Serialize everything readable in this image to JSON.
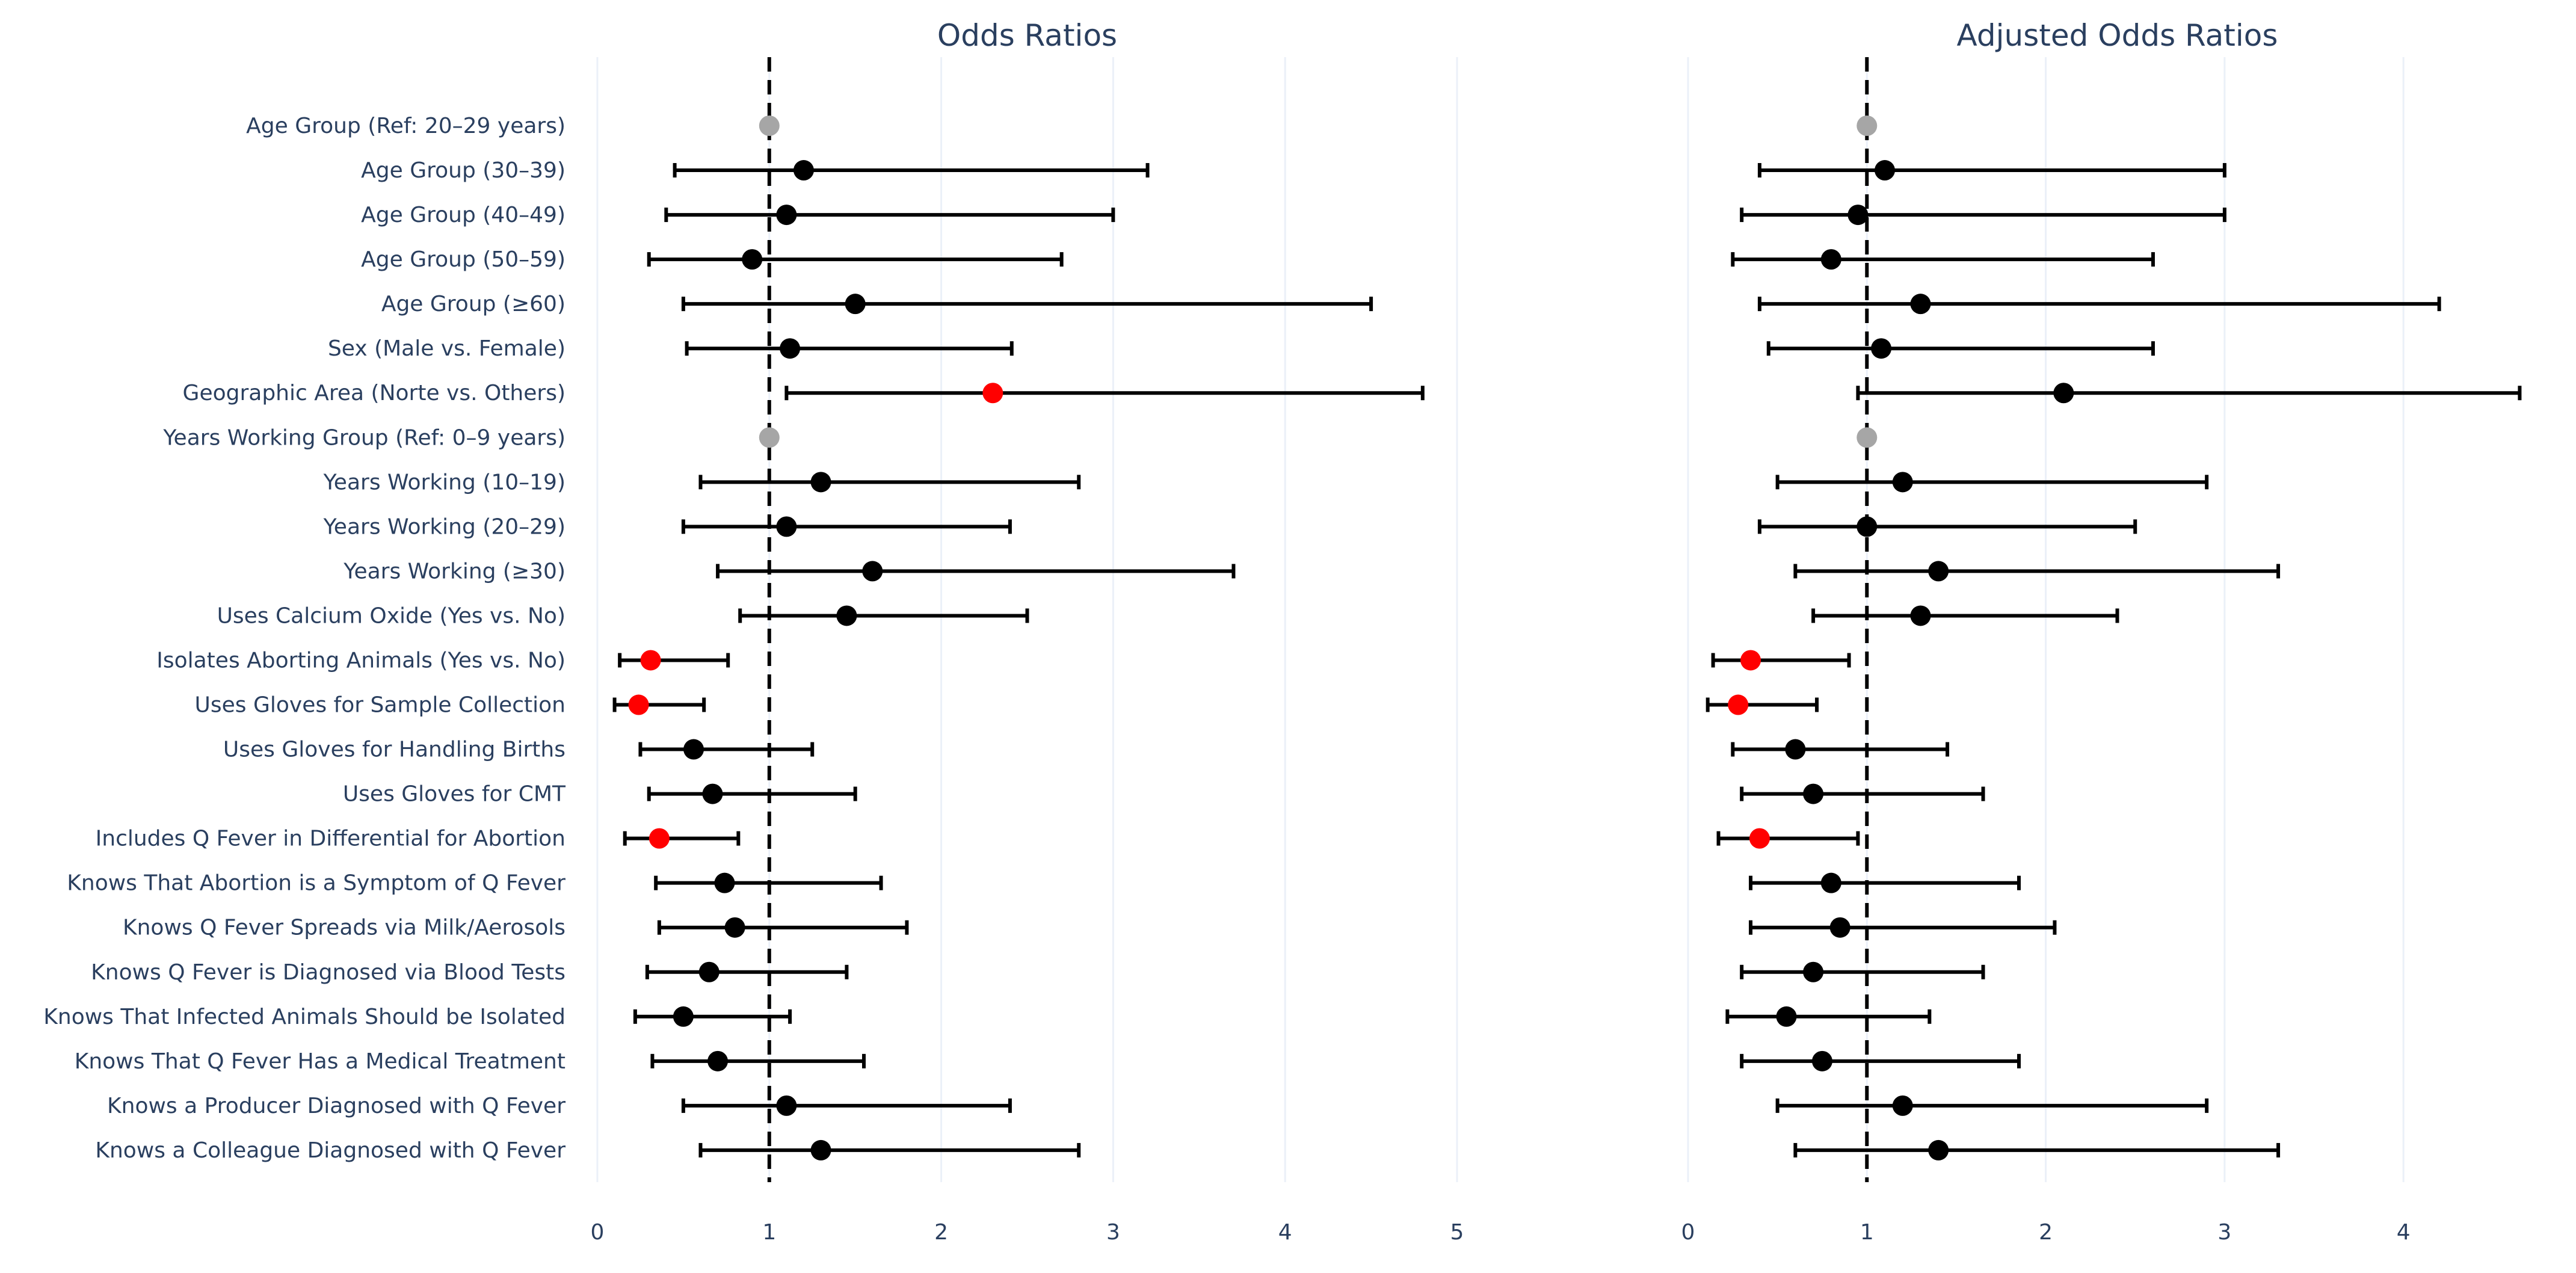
{
  "chart_data": [
    {
      "type": "forest",
      "title": "Odds Ratios",
      "xlim": [
        0,
        5
      ],
      "xticks": [
        0,
        1,
        2,
        3,
        4,
        5
      ],
      "reference_line": 1,
      "rows": [
        {
          "label": "Age Group (Ref: 20–29 years)",
          "or": 1.0,
          "lo": null,
          "hi": null,
          "kind": "reference"
        },
        {
          "label": "Age Group (30–39)",
          "or": 1.2,
          "lo": 0.45,
          "hi": 3.2,
          "kind": "normal"
        },
        {
          "label": "Age Group (40–49)",
          "or": 1.1,
          "lo": 0.4,
          "hi": 3.0,
          "kind": "normal"
        },
        {
          "label": "Age Group (50–59)",
          "or": 0.9,
          "lo": 0.3,
          "hi": 2.7,
          "kind": "normal"
        },
        {
          "label": "Age Group (≥60)",
          "or": 1.5,
          "lo": 0.5,
          "hi": 4.5,
          "kind": "normal"
        },
        {
          "label": "Sex (Male vs. Female)",
          "or": 1.12,
          "lo": 0.52,
          "hi": 2.41,
          "kind": "normal"
        },
        {
          "label": "Geographic Area (Norte vs. Others)",
          "or": 2.3,
          "lo": 1.1,
          "hi": 4.8,
          "kind": "significant"
        },
        {
          "label": "Years Working Group (Ref: 0–9 years)",
          "or": 1.0,
          "lo": null,
          "hi": null,
          "kind": "reference"
        },
        {
          "label": "Years Working (10–19)",
          "or": 1.3,
          "lo": 0.6,
          "hi": 2.8,
          "kind": "normal"
        },
        {
          "label": "Years Working (20–29)",
          "or": 1.1,
          "lo": 0.5,
          "hi": 2.4,
          "kind": "normal"
        },
        {
          "label": "Years Working (≥30)",
          "or": 1.6,
          "lo": 0.7,
          "hi": 3.7,
          "kind": "normal"
        },
        {
          "label": "Uses Calcium Oxide (Yes vs. No)",
          "or": 1.45,
          "lo": 0.83,
          "hi": 2.5,
          "kind": "normal"
        },
        {
          "label": "Isolates Aborting Animals (Yes vs. No)",
          "or": 0.31,
          "lo": 0.13,
          "hi": 0.76,
          "kind": "significant"
        },
        {
          "label": "Uses Gloves for Sample Collection",
          "or": 0.24,
          "lo": 0.1,
          "hi": 0.62,
          "kind": "significant"
        },
        {
          "label": "Uses Gloves for Handling Births",
          "or": 0.56,
          "lo": 0.25,
          "hi": 1.25,
          "kind": "normal"
        },
        {
          "label": "Uses Gloves for CMT",
          "or": 0.67,
          "lo": 0.3,
          "hi": 1.5,
          "kind": "normal"
        },
        {
          "label": "Includes Q Fever in Differential for Abortion",
          "or": 0.36,
          "lo": 0.16,
          "hi": 0.82,
          "kind": "significant"
        },
        {
          "label": "Knows That Abortion is a Symptom of Q Fever",
          "or": 0.74,
          "lo": 0.34,
          "hi": 1.65,
          "kind": "normal"
        },
        {
          "label": "Knows Q Fever Spreads via Milk/Aerosols",
          "or": 0.8,
          "lo": 0.36,
          "hi": 1.8,
          "kind": "normal"
        },
        {
          "label": "Knows Q Fever is Diagnosed via Blood Tests",
          "or": 0.65,
          "lo": 0.29,
          "hi": 1.45,
          "kind": "normal"
        },
        {
          "label": "Knows That Infected Animals Should be Isolated",
          "or": 0.5,
          "lo": 0.22,
          "hi": 1.12,
          "kind": "normal"
        },
        {
          "label": "Knows That Q Fever Has a Medical Treatment",
          "or": 0.7,
          "lo": 0.32,
          "hi": 1.55,
          "kind": "normal"
        },
        {
          "label": "Knows a Producer Diagnosed with Q Fever",
          "or": 1.1,
          "lo": 0.5,
          "hi": 2.4,
          "kind": "normal"
        },
        {
          "label": "Knows a Colleague Diagnosed with Q Fever",
          "or": 1.3,
          "lo": 0.6,
          "hi": 2.8,
          "kind": "normal"
        }
      ]
    },
    {
      "type": "forest",
      "title": "Adjusted Odds Ratios",
      "xlim": [
        0,
        4.8
      ],
      "xticks": [
        0,
        1,
        2,
        3,
        4
      ],
      "reference_line": 1,
      "rows": [
        {
          "label": "Age Group (Ref: 20–29 years)",
          "or": 1.0,
          "lo": null,
          "hi": null,
          "kind": "reference"
        },
        {
          "label": "Age Group (30–39)",
          "or": 1.1,
          "lo": 0.4,
          "hi": 3.0,
          "kind": "normal"
        },
        {
          "label": "Age Group (40–49)",
          "or": 0.95,
          "lo": 0.3,
          "hi": 3.0,
          "kind": "normal"
        },
        {
          "label": "Age Group (50–59)",
          "or": 0.8,
          "lo": 0.25,
          "hi": 2.6,
          "kind": "normal"
        },
        {
          "label": "Age Group (≥60)",
          "or": 1.3,
          "lo": 0.4,
          "hi": 4.2,
          "kind": "normal"
        },
        {
          "label": "Sex (Male vs. Female)",
          "or": 1.08,
          "lo": 0.45,
          "hi": 2.6,
          "kind": "normal"
        },
        {
          "label": "Geographic Area (Norte vs. Others)",
          "or": 2.1,
          "lo": 0.95,
          "hi": 4.65,
          "kind": "normal"
        },
        {
          "label": "Years Working Group (Ref: 0–9 years)",
          "or": 1.0,
          "lo": null,
          "hi": null,
          "kind": "reference"
        },
        {
          "label": "Years Working (10–19)",
          "or": 1.2,
          "lo": 0.5,
          "hi": 2.9,
          "kind": "normal"
        },
        {
          "label": "Years Working (20–29)",
          "or": 1.0,
          "lo": 0.4,
          "hi": 2.5,
          "kind": "normal"
        },
        {
          "label": "Years Working (≥30)",
          "or": 1.4,
          "lo": 0.6,
          "hi": 3.3,
          "kind": "normal"
        },
        {
          "label": "Uses Calcium Oxide (Yes vs. No)",
          "or": 1.3,
          "lo": 0.7,
          "hi": 2.4,
          "kind": "normal"
        },
        {
          "label": "Isolates Aborting Animals (Yes vs. No)",
          "or": 0.35,
          "lo": 0.14,
          "hi": 0.9,
          "kind": "significant"
        },
        {
          "label": "Uses Gloves for Sample Collection",
          "or": 0.28,
          "lo": 0.11,
          "hi": 0.72,
          "kind": "significant"
        },
        {
          "label": "Uses Gloves for Handling Births",
          "or": 0.6,
          "lo": 0.25,
          "hi": 1.45,
          "kind": "normal"
        },
        {
          "label": "Uses Gloves for CMT",
          "or": 0.7,
          "lo": 0.3,
          "hi": 1.65,
          "kind": "normal"
        },
        {
          "label": "Includes Q Fever in Differential for Abortion",
          "or": 0.4,
          "lo": 0.17,
          "hi": 0.95,
          "kind": "significant"
        },
        {
          "label": "Knows That Abortion is a Symptom of Q Fever",
          "or": 0.8,
          "lo": 0.35,
          "hi": 1.85,
          "kind": "normal"
        },
        {
          "label": "Knows Q Fever Spreads via Milk/Aerosols",
          "or": 0.85,
          "lo": 0.35,
          "hi": 2.05,
          "kind": "normal"
        },
        {
          "label": "Knows Q Fever is Diagnosed via Blood Tests",
          "or": 0.7,
          "lo": 0.3,
          "hi": 1.65,
          "kind": "normal"
        },
        {
          "label": "Knows That Infected Animals Should be Isolated",
          "or": 0.55,
          "lo": 0.22,
          "hi": 1.35,
          "kind": "normal"
        },
        {
          "label": "Knows That Q Fever Has a Medical Treatment",
          "or": 0.75,
          "lo": 0.3,
          "hi": 1.85,
          "kind": "normal"
        },
        {
          "label": "Knows a Producer Diagnosed with Q Fever",
          "or": 1.2,
          "lo": 0.5,
          "hi": 2.9,
          "kind": "normal"
        },
        {
          "label": "Knows a Colleague Diagnosed with Q Fever",
          "or": 1.4,
          "lo": 0.6,
          "hi": 3.3,
          "kind": "normal"
        }
      ]
    }
  ],
  "colors": {
    "text": "#2a3f5f",
    "grid": "#ebf0f8",
    "marker_normal": "#000000",
    "marker_significant": "#ff0000",
    "marker_reference": "#a6a6a6",
    "error_bar": "#000000"
  }
}
